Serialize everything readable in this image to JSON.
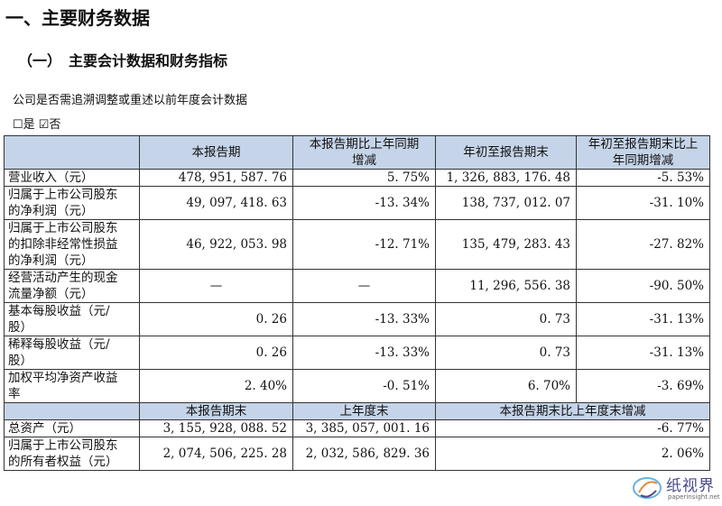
{
  "heading1": "一、主要财务数据",
  "heading2": "（一）　主要会计数据和财务指标",
  "question": "公司是否需追溯调整或重述以前年度会计数据",
  "option_yes": "☐是",
  "option_no": "☑否",
  "table": {
    "header1": [
      "",
      "本报告期",
      "本报告期比上年同期\n增减",
      "年初至报告期末",
      "年初至报告期末比上\n年同期增减"
    ],
    "rows1": [
      {
        "label": "营业收入（元）",
        "v1": "478, 951, 587. 76",
        "v2": "5. 75%",
        "v3": "1, 326, 883, 176. 48",
        "v4": "-5. 53%"
      },
      {
        "label": "归属于上市公司股东\n的净利润（元）",
        "v1": "49, 097, 418. 63",
        "v2": "-13. 34%",
        "v3": "138, 737, 012. 07",
        "v4": "-31. 10%"
      },
      {
        "label": "归属于上市公司股东\n的扣除非经常性损益\n的净利润（元）",
        "v1": "46, 922, 053. 98",
        "v2": "-12. 71%",
        "v3": "135, 479, 283. 43",
        "v4": "-27. 82%"
      },
      {
        "label": "经营活动产生的现金\n流量净额（元）",
        "v1": "—",
        "v2": "—",
        "v3": "11, 296, 556. 38",
        "v4": "-90. 50%"
      },
      {
        "label": "基本每股收益（元/\n股）",
        "v1": "0. 26",
        "v2": "-13. 33%",
        "v3": "0. 73",
        "v4": "-31. 13%"
      },
      {
        "label": "稀释每股收益（元/\n股）",
        "v1": "0. 26",
        "v2": "-13. 33%",
        "v3": "0. 73",
        "v4": "-31. 13%"
      },
      {
        "label": "加权平均净资产收益\n率",
        "v1": "2. 40%",
        "v2": "-0. 51%",
        "v3": "6. 70%",
        "v4": "-3. 69%"
      }
    ],
    "header2": [
      "",
      "本报告期末",
      "上年度末",
      "本报告期末比上年度末增减"
    ],
    "rows2": [
      {
        "label": "总资产（元）",
        "v1": "3, 155, 928, 088. 52",
        "v2": "3, 385, 057, 001. 16",
        "v3": "-6. 77%"
      },
      {
        "label": "归属于上市公司股东\n的所有者权益（元）",
        "v1": "2, 074, 506, 225. 28",
        "v2": "2, 032, 586, 829. 36",
        "v3": "2. 06%"
      }
    ]
  },
  "watermark": {
    "name": "纸视界",
    "url": "paperinsight.net",
    "color": "#4a4a8a"
  }
}
